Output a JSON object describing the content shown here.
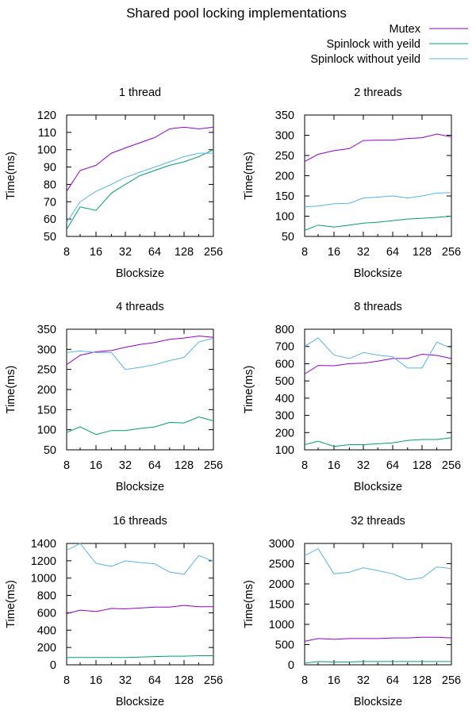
{
  "chart_data": {
    "title": "Shared pool locking implementations",
    "legend": {
      "placement": "top-right",
      "entries": [
        {
          "label": "Mutex",
          "color": "#9400d3"
        },
        {
          "label": "Spinlock with yeild",
          "color": "#009e73"
        },
        {
          "label": "Spinlock without yeild",
          "color": "#56b4e9"
        }
      ]
    },
    "panels": [
      {
        "type": "line",
        "title": "1 thread",
        "xlabel": "Blocksize",
        "ylabel": "Time(ms)",
        "x_scale": "log2",
        "xlim": [
          8,
          256
        ],
        "ylim": [
          50,
          120
        ],
        "xticks": [
          8,
          16,
          32,
          64,
          128,
          256
        ],
        "yticks": [
          50,
          60,
          70,
          80,
          90,
          100,
          110,
          120
        ],
        "x": [
          8,
          11,
          16,
          23,
          32,
          45,
          64,
          91,
          128,
          181,
          256
        ],
        "series": [
          {
            "name": "Mutex",
            "values": [
              76,
              88,
              91,
              98,
              101,
              104,
              107,
              112,
              113,
              112,
              113
            ]
          },
          {
            "name": "Spinlock with yeild",
            "values": [
              54,
              67,
              65,
              75,
              80,
              85,
              88,
              91,
              93,
              96,
              100
            ]
          },
          {
            "name": "Spinlock without yeild",
            "values": [
              58,
              70,
              76,
              80,
              84,
              87,
              90,
              93,
              96,
              98,
              98
            ]
          }
        ]
      },
      {
        "type": "line",
        "title": "2 threads",
        "xlabel": "Blocksize",
        "ylabel": "Time(ms)",
        "x_scale": "log2",
        "xlim": [
          8,
          256
        ],
        "ylim": [
          50,
          350
        ],
        "xticks": [
          8,
          16,
          32,
          64,
          128,
          256
        ],
        "yticks": [
          50,
          100,
          150,
          200,
          250,
          300,
          350
        ],
        "x": [
          8,
          11,
          16,
          23,
          32,
          45,
          64,
          91,
          128,
          181,
          256
        ],
        "series": [
          {
            "name": "Mutex",
            "values": [
              235,
              253,
              262,
              267,
              287,
              288,
              288,
              292,
              294,
              303,
              296
            ]
          },
          {
            "name": "Spinlock with yeild",
            "values": [
              65,
              78,
              73,
              78,
              83,
              85,
              89,
              93,
              95,
              97,
              100
            ]
          },
          {
            "name": "Spinlock without yeild",
            "values": [
              123,
              125,
              131,
              132,
              145,
              147,
              150,
              145,
              150,
              157,
              158
            ]
          }
        ]
      },
      {
        "type": "line",
        "title": "4 threads",
        "xlabel": "Blocksize",
        "ylabel": "Time(ms)",
        "x_scale": "log2",
        "xlim": [
          8,
          256
        ],
        "ylim": [
          50,
          350
        ],
        "xticks": [
          8,
          16,
          32,
          64,
          128,
          256
        ],
        "yticks": [
          50,
          100,
          150,
          200,
          250,
          300,
          350
        ],
        "x": [
          8,
          11,
          16,
          23,
          32,
          45,
          64,
          91,
          128,
          181,
          256
        ],
        "series": [
          {
            "name": "Mutex",
            "values": [
              262,
              285,
              294,
              297,
              305,
              312,
              317,
              325,
              328,
              333,
              330
            ]
          },
          {
            "name": "Spinlock with yeild",
            "values": [
              93,
              107,
              88,
              98,
              98,
              103,
              107,
              118,
              117,
              132,
              122
            ]
          },
          {
            "name": "Spinlock without yeild",
            "values": [
              292,
              296,
              292,
              292,
              250,
              255,
              262,
              272,
              280,
              318,
              328
            ]
          }
        ]
      },
      {
        "type": "line",
        "title": "8 threads",
        "xlabel": "Blocksize",
        "ylabel": "Time(ms)",
        "x_scale": "log2",
        "xlim": [
          8,
          256
        ],
        "ylim": [
          100,
          800
        ],
        "xticks": [
          8,
          16,
          32,
          64,
          128,
          256
        ],
        "yticks": [
          100,
          200,
          300,
          400,
          500,
          600,
          700,
          800
        ],
        "x": [
          8,
          11,
          16,
          23,
          32,
          45,
          64,
          91,
          128,
          181,
          256
        ],
        "series": [
          {
            "name": "Mutex",
            "values": [
              540,
              590,
              588,
              600,
              603,
              615,
              630,
              630,
              655,
              648,
              630
            ]
          },
          {
            "name": "Spinlock with yeild",
            "values": [
              130,
              150,
              120,
              130,
              130,
              135,
              140,
              155,
              160,
              160,
              170
            ]
          },
          {
            "name": "Spinlock without yeild",
            "values": [
              700,
              750,
              650,
              630,
              665,
              650,
              640,
              575,
              575,
              725,
              690
            ]
          }
        ]
      },
      {
        "type": "line",
        "title": "16 threads",
        "xlabel": "Blocksize",
        "ylabel": "Time(ms)",
        "x_scale": "log2",
        "xlim": [
          8,
          256
        ],
        "ylim": [
          0,
          1400
        ],
        "xticks": [
          8,
          16,
          32,
          64,
          128,
          256
        ],
        "yticks": [
          0,
          200,
          400,
          600,
          800,
          1000,
          1200,
          1400
        ],
        "x": [
          8,
          11,
          16,
          23,
          32,
          45,
          64,
          91,
          128,
          181,
          256
        ],
        "series": [
          {
            "name": "Mutex",
            "values": [
              590,
              630,
              615,
              650,
              645,
              655,
              665,
              665,
              685,
              670,
              670
            ]
          },
          {
            "name": "Spinlock with yeild",
            "values": [
              85,
              85,
              85,
              85,
              85,
              90,
              95,
              100,
              100,
              105,
              105
            ]
          },
          {
            "name": "Spinlock without yeild",
            "values": [
              1320,
              1400,
              1170,
              1135,
              1200,
              1180,
              1165,
              1070,
              1045,
              1260,
              1195
            ]
          }
        ]
      },
      {
        "type": "line",
        "title": "32 threads",
        "xlabel": "Blocksize",
        "ylabel": "Time(ms)",
        "x_scale": "log2",
        "xlim": [
          8,
          256
        ],
        "ylim": [
          0,
          3000
        ],
        "xticks": [
          8,
          16,
          32,
          64,
          128,
          256
        ],
        "yticks": [
          0,
          500,
          1000,
          1500,
          2000,
          2500,
          3000
        ],
        "x": [
          8,
          11,
          16,
          23,
          32,
          45,
          64,
          91,
          128,
          181,
          256
        ],
        "series": [
          {
            "name": "Mutex",
            "values": [
              580,
              650,
              630,
              650,
              650,
              650,
              665,
              665,
              680,
              680,
              665
            ]
          },
          {
            "name": "Spinlock with yeild",
            "values": [
              40,
              80,
              70,
              70,
              80,
              80,
              80,
              80,
              80,
              80,
              80
            ]
          },
          {
            "name": "Spinlock without yeild",
            "values": [
              2700,
              2870,
              2250,
              2290,
              2400,
              2330,
              2250,
              2100,
              2150,
              2420,
              2380
            ]
          }
        ]
      }
    ]
  }
}
